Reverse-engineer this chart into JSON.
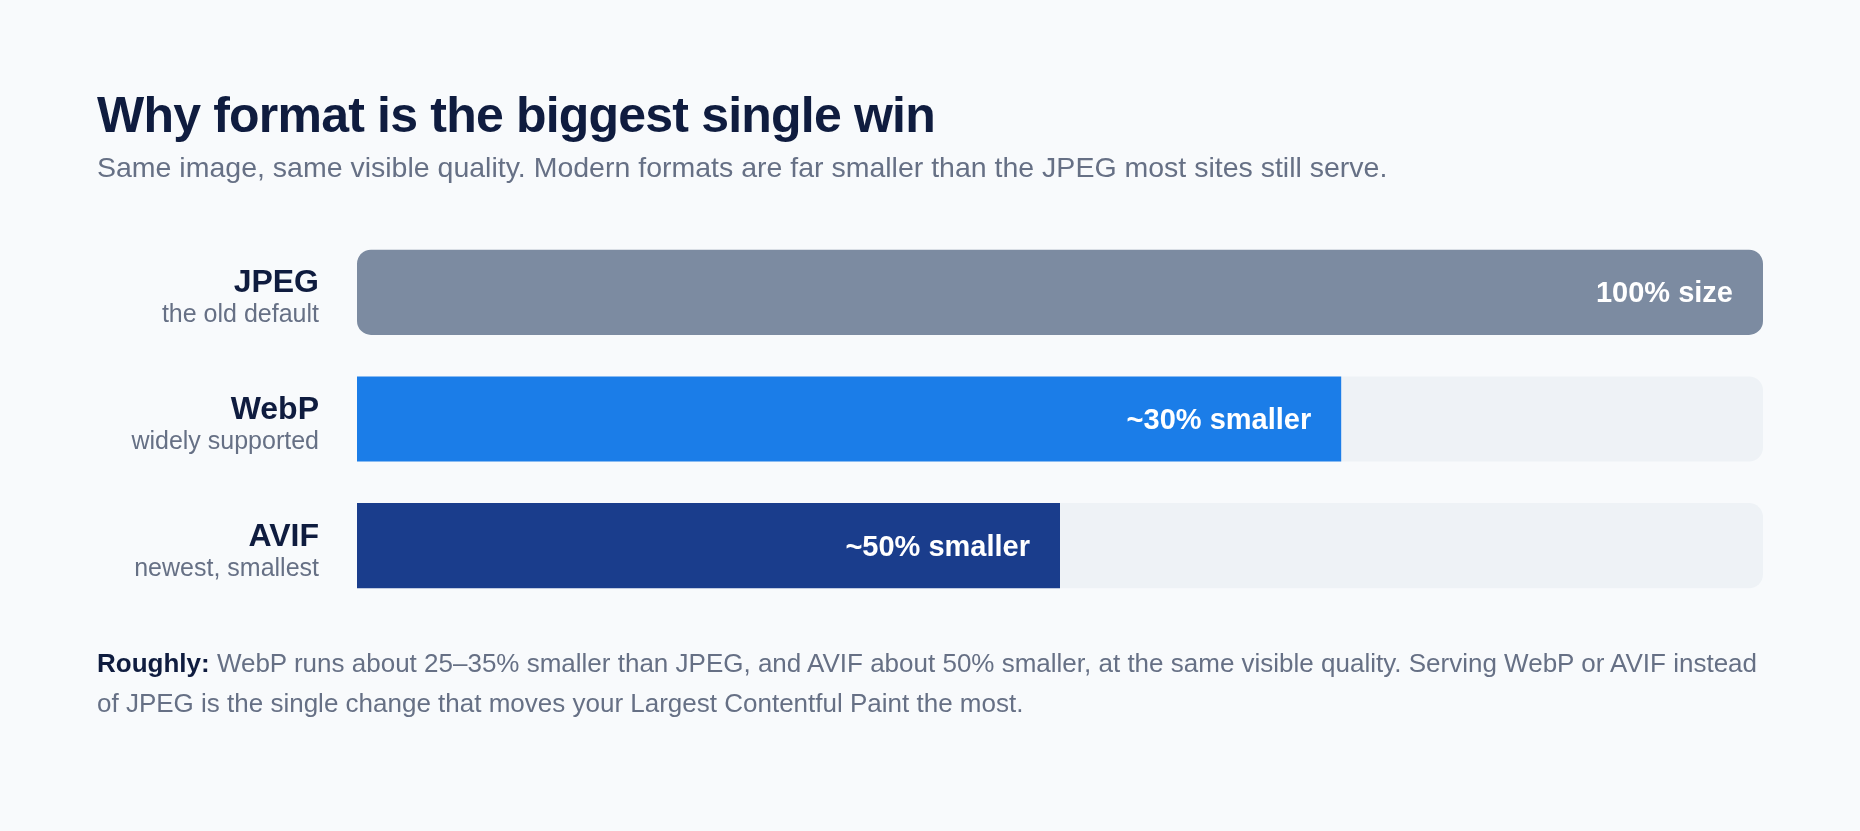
{
  "chart_data": {
    "type": "bar",
    "title": "Why format is the biggest single win",
    "subtitle": "Same image, same visible quality. Modern formats are far smaller than the JPEG most sites still serve.",
    "categories": [
      "JPEG\nthe old default",
      "WebP\nwidely supported",
      "AVIF\nnewest, smallest"
    ],
    "orientation": "horizontal",
    "stacked": true,
    "xlim": [
      0,
      100
    ],
    "tick_labels": false,
    "series": [
      {
        "colors": [
          "#7c8ba1",
          "#1b7de8",
          "#1a3d8c"
        ],
        "values": [
          100,
          70,
          50
        ],
        "value_labels": [
          "100% size",
          null,
          null
        ]
      },
      {
        "color": "#eef2f6",
        "values": [
          null,
          30,
          50
        ],
        "value_labels": [
          null,
          "~30% smaller",
          "~50% smaller"
        ]
      }
    ],
    "annotations": [
      "Roughly: WebP runs about 25–35% smaller than JPEG, and AVIF about 50% smaller, at the same visible quality. Serving WebP or AVIF instead of JPEG is the single change that moves your Largest Contentful Paint the most."
    ]
  }
}
